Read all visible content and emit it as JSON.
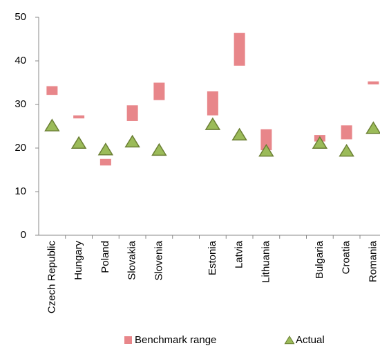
{
  "chart_data": {
    "type": "range-bar",
    "categories": [
      "Czech Republic",
      "Hungary",
      "Poland",
      "Slovakia",
      "Slovenia",
      null,
      "Estonia",
      "Latvia",
      "Lithuania",
      null,
      "Bulgaria",
      "Croatia",
      "Romania"
    ],
    "series": [
      {
        "name": "Benchmark range",
        "color": "#e8868a",
        "low": [
          32.2,
          26.8,
          16,
          26.2,
          31,
          null,
          27.5,
          38.9,
          19.5,
          null,
          21.5,
          22,
          34.6
        ],
        "high": [
          34.2,
          27.5,
          17.5,
          29.8,
          35,
          null,
          33,
          46.4,
          24.3,
          null,
          23,
          25.2,
          35.3
        ]
      },
      {
        "name": "Actual",
        "color": "#9bbb59",
        "values": [
          25.1,
          21.1,
          19.6,
          21.4,
          19.5,
          null,
          25.4,
          23,
          19.3,
          null,
          21.1,
          19.3,
          24.5
        ]
      }
    ],
    "ylim": [
      0,
      50
    ],
    "yticks": [
      0,
      10,
      20,
      30,
      40,
      50
    ],
    "legend": "bottom"
  }
}
